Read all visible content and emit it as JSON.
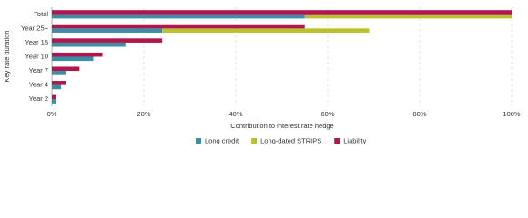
{
  "chart_data": {
    "type": "bar",
    "orientation": "horizontal",
    "x_label": "Contribution to interest rate hedge",
    "y_label": "Key rate duration",
    "categories": [
      "Total",
      "Year 25+",
      "Year 15",
      "Year 10",
      "Year 7",
      "Year 4",
      "Year 2"
    ],
    "series": [
      {
        "name": "Long credit",
        "color": "#3a8fa8",
        "stack": "assets",
        "values": [
          55,
          24,
          16,
          9,
          3,
          2,
          1
        ]
      },
      {
        "name": "Long-dated STRIPS",
        "color": "#b9c22d",
        "stack": "assets",
        "values": [
          45,
          45,
          0,
          0,
          0,
          0,
          0
        ]
      },
      {
        "name": "Liability",
        "color": "#b0174f",
        "stack": "liability",
        "values": [
          100,
          55,
          24,
          11,
          6,
          3,
          1
        ]
      }
    ],
    "xlim": [
      0,
      100
    ],
    "xticks": [
      {
        "value": 0,
        "label": "0%"
      },
      {
        "value": 20,
        "label": "20%"
      },
      {
        "value": 40,
        "label": "40%"
      },
      {
        "value": 60,
        "label": "60%"
      },
      {
        "value": 80,
        "label": "80%"
      },
      {
        "value": 100,
        "label": "100%"
      }
    ],
    "grid": true,
    "legend": "bottom"
  }
}
